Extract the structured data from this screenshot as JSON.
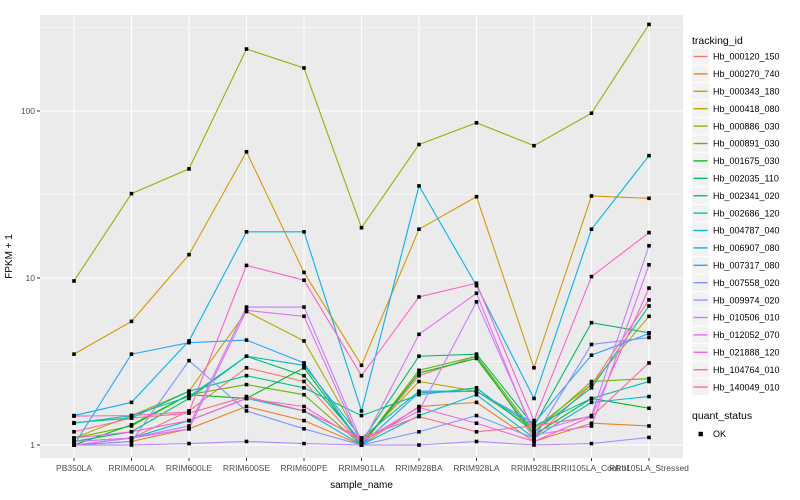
{
  "chart_data": {
    "type": "line",
    "title": "",
    "xlabel": "sample_name",
    "ylabel": "FPKM + 1",
    "y_scale": "log10",
    "y_ticks": [
      1,
      10,
      100
    ],
    "y_minor_ticks": [
      3.1623,
      31.623,
      316.23
    ],
    "ylim_log": [
      0.92,
      577
    ],
    "grid": "on",
    "panel_bg": "#EBEBEB",
    "grid_color": "#FFFFFF",
    "tick_label_color": "#4D4D4D",
    "axis_title_color": "#000000",
    "marker": "black-square",
    "marker_color": "#000000",
    "legend_position": "right",
    "legend_title": "tracking_id",
    "legend_key_bg": "#F2F2F2",
    "legend2_title": "quant_status",
    "legend2_items": [
      {
        "label": "OK",
        "marker": "black-square"
      }
    ],
    "categories": [
      "PB350LA",
      "RRIM600LA",
      "RRIM600LE",
      "RRIM600SE",
      "RRIM600PE",
      "RRIM901LA",
      "RRIM928BA",
      "RRIM928LA",
      "RRIM928LE",
      "RRII105LA_Control",
      "RRII105LA_Stressed"
    ],
    "series": [
      {
        "name": "Hb_000120_150",
        "color": "#F8766D",
        "values": [
          1.05,
          1.1,
          1.6,
          2.9,
          2.4,
          1.0,
          2.6,
          3.4,
          1.1,
          2.3,
          7.4
        ]
      },
      {
        "name": "Hb_000270_740",
        "color": "#E9832C",
        "values": [
          1.0,
          1.05,
          1.25,
          1.7,
          1.4,
          1.0,
          1.7,
          1.8,
          1.05,
          1.35,
          1.3
        ]
      },
      {
        "name": "Hb_000343_180",
        "color": "#D49A00",
        "values": [
          3.5,
          5.5,
          13.8,
          57,
          10.8,
          3.0,
          19.6,
          30.7,
          2.9,
          31,
          30
        ]
      },
      {
        "name": "Hb_000418_080",
        "color": "#B9A700",
        "values": [
          1.1,
          1.5,
          2.1,
          6.3,
          4.2,
          1.05,
          2.4,
          2.1,
          1.25,
          2.3,
          5.9
        ]
      },
      {
        "name": "Hb_000886_030",
        "color": "#97B100",
        "values": [
          9.6,
          32,
          45,
          235,
          181,
          20,
          63,
          85,
          62,
          97,
          330
        ]
      },
      {
        "name": "Hb_000891_030",
        "color": "#64B800",
        "values": [
          1.1,
          1.3,
          2.0,
          2.3,
          2.0,
          1.0,
          2.8,
          3.4,
          1.2,
          2.4,
          2.5
        ]
      },
      {
        "name": "Hb_001675_030",
        "color": "#00BC22",
        "values": [
          1.0,
          1.32,
          2.0,
          1.9,
          2.9,
          1.0,
          2.7,
          3.3,
          1.15,
          1.9,
          1.66
        ]
      },
      {
        "name": "Hb_002035_110",
        "color": "#00BF64",
        "values": [
          1.05,
          1.2,
          1.9,
          3.4,
          2.6,
          1.05,
          3.4,
          3.5,
          1.3,
          5.4,
          4.7
        ]
      },
      {
        "name": "Hb_002341_020",
        "color": "#00C08E",
        "values": [
          1.36,
          1.45,
          2.1,
          2.6,
          2.2,
          1.5,
          2.0,
          2.2,
          1.2,
          2.2,
          6.8
        ]
      },
      {
        "name": "Hb_002686_120",
        "color": "#00C0B4",
        "values": [
          1.35,
          1.5,
          1.95,
          3.4,
          3.0,
          1.1,
          2.1,
          2.1,
          1.3,
          1.9,
          2.4
        ]
      },
      {
        "name": "Hb_004787_040",
        "color": "#00BCD3",
        "values": [
          1.0,
          1.1,
          1.4,
          1.9,
          1.6,
          1.0,
          1.5,
          2.0,
          1.1,
          1.8,
          1.95
        ]
      },
      {
        "name": "Hb_006907_080",
        "color": "#00B4EB",
        "values": [
          1.5,
          1.8,
          4.2,
          18.9,
          18.9,
          1.6,
          35.6,
          9.0,
          1.9,
          19.6,
          54
        ]
      },
      {
        "name": "Hb_007317_080",
        "color": "#26A5FF",
        "values": [
          1.0,
          3.5,
          4.1,
          4.25,
          3.1,
          1.0,
          2.06,
          2.1,
          1.35,
          3.45,
          4.65
        ]
      },
      {
        "name": "Hb_007558_020",
        "color": "#7E96FF",
        "values": [
          1.0,
          1.05,
          3.2,
          1.6,
          1.25,
          1.0,
          1.2,
          1.5,
          1.1,
          4.0,
          4.4
        ]
      },
      {
        "name": "Hb_009974_020",
        "color": "#B588FF",
        "values": [
          1.0,
          1.0,
          1.02,
          1.05,
          1.02,
          1.0,
          1.0,
          1.05,
          1.0,
          1.02,
          1.11
        ]
      },
      {
        "name": "Hb_010506_010",
        "color": "#C77CFF",
        "values": [
          1.05,
          1.1,
          1.3,
          6.7,
          6.7,
          1.05,
          1.6,
          7.2,
          1.2,
          1.5,
          15.6
        ]
      },
      {
        "name": "Hb_012052_070",
        "color": "#E26EF7",
        "values": [
          1.0,
          1.1,
          1.25,
          6.4,
          5.9,
          1.0,
          4.6,
          8.1,
          1.15,
          1.3,
          12.0
        ]
      },
      {
        "name": "Hb_021888_120",
        "color": "#F863E0",
        "values": [
          1.1,
          1.2,
          1.4,
          1.9,
          1.7,
          1.05,
          1.68,
          1.35,
          1.05,
          1.48,
          8.7
        ]
      },
      {
        "name": "Hb_104764_010",
        "color": "#FF61C7",
        "values": [
          1.49,
          1.5,
          1.58,
          11.9,
          9.7,
          2.6,
          7.7,
          9.3,
          1.4,
          10.2,
          18.7
        ]
      },
      {
        "name": "Hb_140049_010",
        "color": "#FF6B93",
        "values": [
          1.2,
          1.45,
          1.55,
          1.95,
          1.6,
          1.1,
          1.48,
          1.2,
          1.3,
          1.48,
          3.1
        ]
      }
    ]
  }
}
